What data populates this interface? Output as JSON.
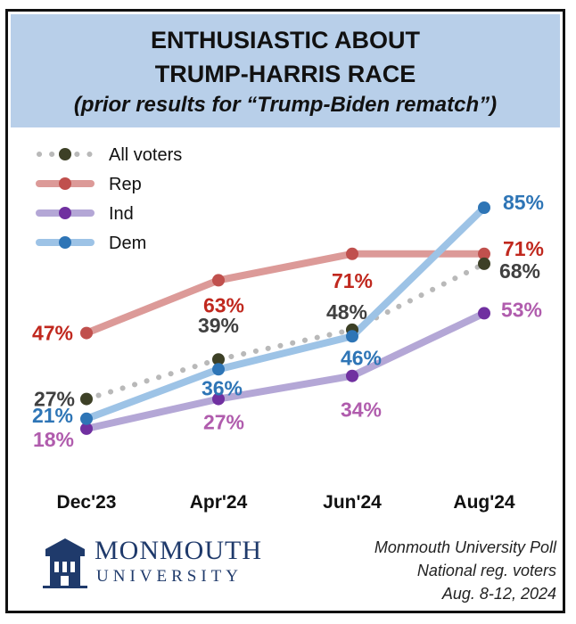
{
  "title_line1": "ENTHUSIASTIC ABOUT",
  "title_line2": "TRUMP-HARRIS RACE",
  "subtitle": "(prior results for “Trump-Biden rematch”)",
  "source": {
    "line1": "Monmouth University Poll",
    "line2": "National reg. voters",
    "line3": "Aug. 8-12, 2024"
  },
  "logo": {
    "name": "MONMOUTH",
    "sub": "UNIVERSITY"
  },
  "chart_data": {
    "type": "line",
    "categories": [
      "Dec'23",
      "Apr'24",
      "Jun'24",
      "Aug'24"
    ],
    "ylim": [
      0,
      100
    ],
    "grid": false,
    "legend_position": "top-left",
    "series": [
      {
        "name": "All voters",
        "values": [
          27,
          39,
          48,
          68
        ],
        "labels": [
          "27%",
          "39%",
          "48%",
          "68%"
        ],
        "color": "#b9b9b9",
        "marker": "#3d4026",
        "label_color": "#404040",
        "dotted": true
      },
      {
        "name": "Rep",
        "values": [
          47,
          63,
          71,
          71
        ],
        "labels": [
          "47%",
          "63%",
          "71%",
          "71%"
        ],
        "color": "#dc9a98",
        "marker": "#c0504d",
        "label_color": "#c0281e",
        "dotted": false
      },
      {
        "name": "Ind",
        "values": [
          18,
          27,
          34,
          53
        ],
        "labels": [
          "18%",
          "27%",
          "34%",
          "53%"
        ],
        "color": "#b4a7d6",
        "marker": "#7030a0",
        "label_color": "#b05cad",
        "dotted": false
      },
      {
        "name": "Dem",
        "values": [
          21,
          36,
          46,
          85
        ],
        "labels": [
          "21%",
          "36%",
          "46%",
          "85%"
        ],
        "color": "#9dc3e6",
        "marker": "#2e75b6",
        "label_color": "#2e75b6",
        "dotted": false
      }
    ]
  }
}
